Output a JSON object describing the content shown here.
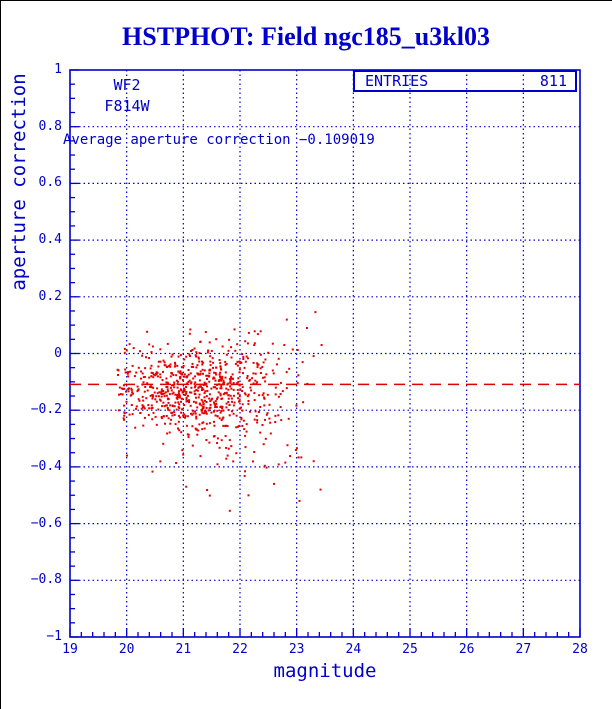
{
  "window": {
    "title": "HSTPHOT: Field ngc185_u3kl03"
  },
  "plot": {
    "camera_label": "WF2",
    "filter_label": "F814W",
    "avg_text": "Average aperture correction −0.109019",
    "entries_label": "ENTRIES",
    "entries_value": "811",
    "xlabel": "magnitude",
    "ylabel": "aperture correction"
  },
  "chart_data": {
    "type": "scatter",
    "title": "HSTPHOT: Field ngc185_u3kl03",
    "xlabel": "magnitude",
    "ylabel": "aperture correction",
    "xlim": [
      19,
      28
    ],
    "ylim": [
      -1,
      1
    ],
    "x_ticks": [
      19,
      20,
      21,
      22,
      23,
      24,
      25,
      26,
      27,
      28
    ],
    "x_tick_labels": [
      "19",
      "20",
      "21",
      "22",
      "23",
      "24",
      "25",
      "26",
      "27",
      "28"
    ],
    "y_ticks": [
      1,
      0.8,
      0.6,
      0.4,
      0.2,
      0,
      -0.2,
      -0.4,
      -0.6,
      -0.8,
      -1
    ],
    "y_tick_labels": [
      "1",
      "0.8",
      "0.6",
      "0.4",
      "0.2",
      "0",
      "−0.2",
      "−0.4",
      "−0.6",
      "−0.8",
      "−1"
    ],
    "x_grid": [
      20,
      21,
      22,
      23,
      24,
      25,
      26,
      27
    ],
    "y_grid": [
      0.8,
      0.6,
      0.4,
      0.2,
      0,
      -0.2,
      -0.4,
      -0.6,
      -0.8
    ],
    "x_minor_step": 0.2,
    "y_minor_step": 0.05,
    "grid": true,
    "entries": 811,
    "average_line": -0.109019,
    "points_x_range": [
      19.82,
      23.46
    ],
    "points_y_range": [
      -0.555,
      0.152
    ],
    "cluster_center": {
      "magnitude": 21.3,
      "correction": -0.14
    },
    "scatter_model": {
      "seed": 20,
      "n_points": 811,
      "mag_mean": 21.3,
      "mag_sd": 0.78,
      "corr_mean": -0.128,
      "corr_sd_base": 0.062,
      "corr_sd_slope": 0.013,
      "tail_prob_base": 0.06,
      "tail_prob_slope": 0.05,
      "tail_sd": 0.11
    },
    "extra_points": [
      [
        23.33,
        0.146
      ],
      [
        23.18,
        0.09
      ],
      [
        23.44,
        0.03
      ],
      [
        23.42,
        -0.48
      ],
      [
        23.05,
        -0.52
      ],
      [
        21.82,
        -0.555
      ],
      [
        22.6,
        -0.46
      ],
      [
        23.3,
        -0.38
      ],
      [
        22.15,
        -0.5
      ],
      [
        21.05,
        -0.47
      ]
    ],
    "colors": {
      "frame": "#0000cc",
      "grid": "#0000cc",
      "text": "#0000cc",
      "points": "#e80000",
      "average_line": "#e00000"
    }
  }
}
